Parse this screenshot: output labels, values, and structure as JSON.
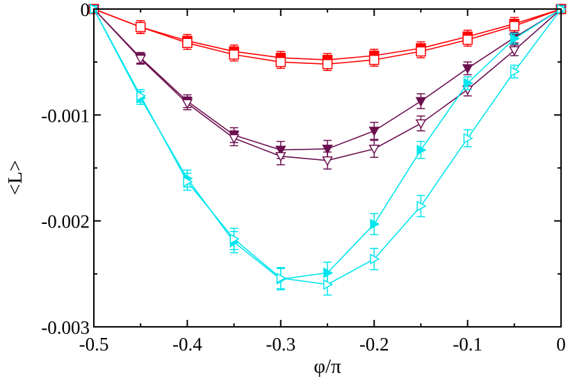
{
  "chart_data": {
    "type": "line",
    "title": "",
    "xlabel": "φ/π",
    "ylabel": "<L>",
    "xlim": [
      -0.5,
      0
    ],
    "ylim": [
      -0.003,
      0
    ],
    "x_ticks": [
      -0.5,
      -0.4,
      -0.3,
      -0.2,
      -0.1,
      0
    ],
    "x_tick_labels": [
      "-0.5",
      "-0.4",
      "-0.3",
      "-0.2",
      "-0.1",
      "0"
    ],
    "y_ticks": [
      0,
      -0.001,
      -0.002,
      -0.003
    ],
    "y_tick_labels": [
      "0",
      "-0.001",
      "-0.002",
      "-0.003"
    ],
    "grid": false,
    "legend": "none",
    "series": [
      {
        "name": "red filled squares",
        "color": "#ff0000",
        "marker": "square",
        "filled": true,
        "x": [
          -0.5,
          -0.45,
          -0.4,
          -0.35,
          -0.3,
          -0.25,
          -0.2,
          -0.15,
          -0.1,
          -0.05,
          0
        ],
        "y": [
          0,
          -0.00017,
          -0.0003,
          -0.0004,
          -0.00046,
          -0.00048,
          -0.00044,
          -0.00037,
          -0.00026,
          -0.00014,
          0
        ],
        "err": [
          3e-05,
          6e-05,
          6e-05,
          6e-05,
          6e-05,
          6e-05,
          6e-05,
          6e-05,
          6e-05,
          6e-05,
          3e-05
        ]
      },
      {
        "name": "red open squares",
        "color": "#ff0000",
        "marker": "square",
        "filled": false,
        "x": [
          -0.5,
          -0.45,
          -0.4,
          -0.35,
          -0.3,
          -0.25,
          -0.2,
          -0.15,
          -0.1,
          -0.05,
          0
        ],
        "y": [
          0,
          -0.00017,
          -0.00032,
          -0.00043,
          -0.0005,
          -0.00052,
          -0.00048,
          -0.0004,
          -0.00029,
          -0.00016,
          0
        ],
        "err": [
          3e-05,
          6e-05,
          6e-05,
          6e-05,
          6e-05,
          6e-05,
          6e-05,
          6e-05,
          6e-05,
          6e-05,
          3e-05
        ]
      },
      {
        "name": "maroon filled down-triangles",
        "color": "#6b0f4f",
        "marker": "triangle-down",
        "filled": true,
        "x": [
          -0.5,
          -0.45,
          -0.4,
          -0.35,
          -0.3,
          -0.25,
          -0.2,
          -0.15,
          -0.1,
          -0.05,
          0
        ],
        "y": [
          0,
          -0.00046,
          -0.00087,
          -0.00119,
          -0.00133,
          -0.00132,
          -0.00115,
          -0.00087,
          -0.00056,
          -0.00027,
          0
        ],
        "err": [
          3e-05,
          5e-05,
          6e-05,
          7e-05,
          8e-05,
          8e-05,
          8e-05,
          7e-05,
          6e-05,
          5e-05,
          3e-05
        ]
      },
      {
        "name": "maroon open down-triangles",
        "color": "#6b0f4f",
        "marker": "triangle-down",
        "filled": false,
        "x": [
          -0.5,
          -0.45,
          -0.4,
          -0.35,
          -0.3,
          -0.25,
          -0.2,
          -0.15,
          -0.1,
          -0.05,
          0
        ],
        "y": [
          0,
          -0.00047,
          -0.00089,
          -0.00122,
          -0.00139,
          -0.00143,
          -0.00132,
          -0.00108,
          -0.00076,
          -0.00039,
          0
        ],
        "err": [
          3e-05,
          5e-05,
          6e-05,
          7e-05,
          8e-05,
          8e-05,
          8e-05,
          7e-05,
          6e-05,
          5e-05,
          3e-05
        ]
      },
      {
        "name": "cyan filled right-triangles",
        "color": "#00e5ee",
        "marker": "triangle-right",
        "filled": true,
        "x": [
          -0.5,
          -0.45,
          -0.4,
          -0.35,
          -0.3,
          -0.25,
          -0.2,
          -0.15,
          -0.1,
          -0.05,
          0
        ],
        "y": [
          0,
          -0.00084,
          -0.0016,
          -0.0022,
          -0.00255,
          -0.00249,
          -0.00203,
          -0.00133,
          -0.0007,
          -0.00028,
          0
        ],
        "err": [
          3e-05,
          6e-05,
          8e-05,
          0.0001,
          0.0001,
          0.0001,
          0.0001,
          8e-05,
          6e-05,
          5e-05,
          3e-05
        ]
      },
      {
        "name": "cyan open right-triangles",
        "color": "#00e5ee",
        "marker": "triangle-right",
        "filled": false,
        "x": [
          -0.5,
          -0.45,
          -0.4,
          -0.35,
          -0.3,
          -0.25,
          -0.2,
          -0.15,
          -0.1,
          -0.05,
          0
        ],
        "y": [
          0,
          -0.00082,
          -0.00163,
          -0.00217,
          -0.00254,
          -0.0026,
          -0.00236,
          -0.00186,
          -0.00122,
          -0.00059,
          0
        ],
        "err": [
          3e-05,
          6e-05,
          8e-05,
          0.0001,
          0.0001,
          0.0001,
          0.0001,
          0.0001,
          8e-05,
          6e-05,
          3e-05
        ]
      }
    ]
  }
}
